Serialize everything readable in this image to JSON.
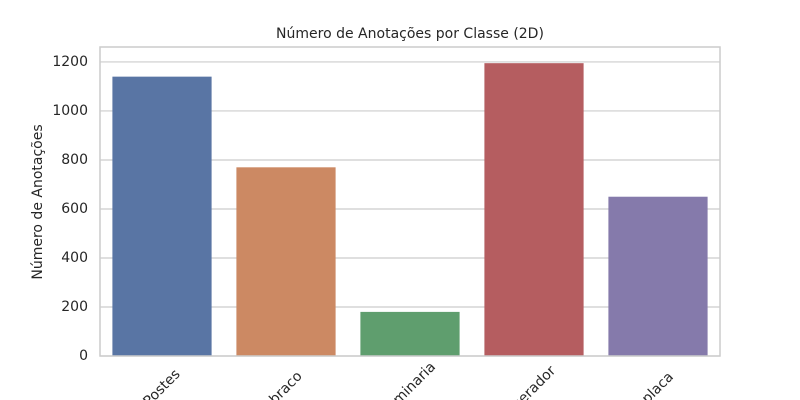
{
  "chart_data": {
    "type": "bar",
    "title": "Número de Anotações por Classe (2D)",
    "y_label": "Número de Anotações",
    "categories": [
      "Postes",
      "braco",
      "luminaria",
      "gerador",
      "placa"
    ],
    "values": [
      1140,
      770,
      180,
      1195,
      650
    ],
    "colors": [
      "#5975a4",
      "#cc8963",
      "#5f9e6e",
      "#b55d60",
      "#857aab"
    ],
    "ylim": [
      0,
      1261
    ],
    "yticks": [
      0,
      200,
      400,
      600,
      800,
      1000,
      1200
    ],
    "grid": true
  }
}
